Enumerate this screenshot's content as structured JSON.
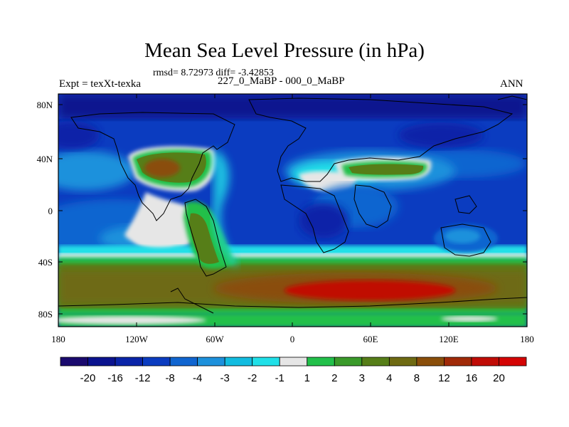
{
  "title": "Mean Sea Level Pressure (in hPa)",
  "stats": "rmsd= 8.72973 diff= -3.42853",
  "experiment": "Expt = texXt-texka",
  "comparison": "227_0_MaBP - 000_0_MaBP",
  "season": "ANN",
  "lat_labels": [
    "80N",
    "40N",
    "0",
    "40S",
    "80S"
  ],
  "lon_labels": [
    "180",
    "120W",
    "60W",
    "0",
    "60E",
    "120E",
    "180"
  ],
  "colorbar": {
    "labels": [
      "-20",
      "-16",
      "-12",
      "-8",
      "-4",
      "-3",
      "-2",
      "-1",
      "1",
      "2",
      "3",
      "4",
      "8",
      "12",
      "16",
      "20"
    ],
    "colors": [
      "#1a0a6e",
      "#0b138f",
      "#0a24a8",
      "#0b3cc0",
      "#1065d0",
      "#1d91dc",
      "#12bce0",
      "#20e0e8",
      "#e6e6e6",
      "#22c04a",
      "#3a9a2a",
      "#567e18",
      "#6e6a12",
      "#8a4e0a",
      "#a02a08",
      "#c00c06",
      "#d40404"
    ]
  },
  "map_colors": {
    "land_outline": "#000000"
  }
}
